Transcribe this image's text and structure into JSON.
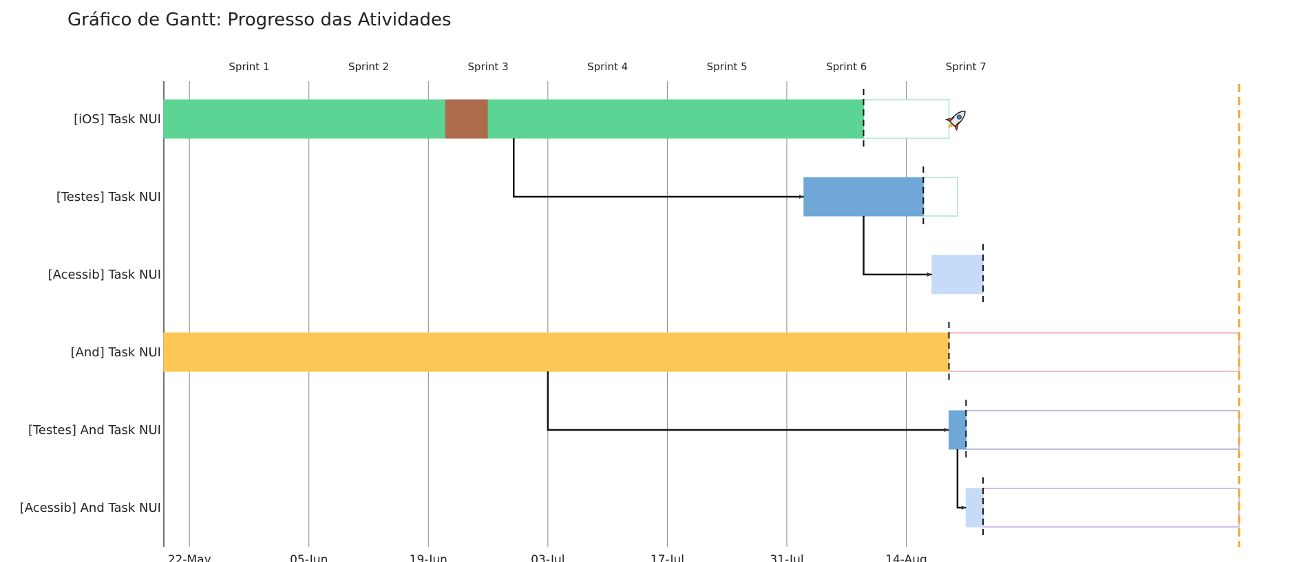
{
  "chart_data": {
    "type": "gantt",
    "title": "Gráfico de Gantt: Progresso das Atividades",
    "x_axis": {
      "ticks": [
        {
          "date": "2023-05-22",
          "label": "22-May"
        },
        {
          "date": "2023-06-05",
          "label": "05-Jun"
        },
        {
          "date": "2023-06-19",
          "label": "19-Jun"
        },
        {
          "date": "2023-07-03",
          "label": "03-Jul"
        },
        {
          "date": "2023-07-17",
          "label": "17-Jul"
        },
        {
          "date": "2023-07-31",
          "label": "31-Jul"
        },
        {
          "date": "2023-08-14",
          "label": "14-Aug"
        }
      ],
      "range": [
        "2023-05-19",
        "2023-09-22"
      ]
    },
    "sprints": [
      {
        "name": "Sprint 1",
        "start": "2023-05-22",
        "end": "2023-06-05"
      },
      {
        "name": "Sprint 2",
        "start": "2023-06-05",
        "end": "2023-06-19"
      },
      {
        "name": "Sprint 3",
        "start": "2023-06-19",
        "end": "2023-07-03"
      },
      {
        "name": "Sprint 4",
        "start": "2023-07-03",
        "end": "2023-07-17"
      },
      {
        "name": "Sprint 5",
        "start": "2023-07-17",
        "end": "2023-07-31"
      },
      {
        "name": "Sprint 6",
        "start": "2023-07-31",
        "end": "2023-08-14"
      },
      {
        "name": "Sprint 7",
        "start": "2023-08-14",
        "end": "2023-08-28"
      }
    ],
    "tasks": [
      {
        "name": "[iOS] Task NUI",
        "segments": [
          {
            "start": "2023-05-19",
            "end": "2023-06-21",
            "color": "#5cd594"
          },
          {
            "start": "2023-06-21",
            "end": "2023-06-26",
            "color": "#ad6b4e"
          },
          {
            "start": "2023-06-26",
            "end": "2023-08-09",
            "color": "#5cd594"
          }
        ],
        "planned": {
          "start": "2023-08-09",
          "end": "2023-08-19",
          "border": "#a8e6c8"
        },
        "marker_date": "2023-08-09",
        "milestone_icon": "rocket-icon"
      },
      {
        "name": "[Testes] Task NUI",
        "segments": [
          {
            "start": "2023-08-02",
            "end": "2023-08-16",
            "color": "#6fa8d6"
          }
        ],
        "planned": {
          "start": "2023-08-16",
          "end": "2023-08-20",
          "border": "#a8e6c8"
        },
        "marker_date": "2023-08-16"
      },
      {
        "name": "[Acessib] Task NUI",
        "segments": [
          {
            "start": "2023-08-17",
            "end": "2023-08-23",
            "color": "#c6dbf7"
          }
        ],
        "planned": null,
        "marker_date": "2023-08-23"
      },
      {
        "name": "[And] Task NUI",
        "segments": [
          {
            "start": "2023-05-19",
            "end": "2023-08-19",
            "color": "#fdc755"
          }
        ],
        "planned": {
          "start": "2023-08-19",
          "end": "2023-09-22",
          "border": "#f1a7a7"
        },
        "marker_date": "2023-08-19"
      },
      {
        "name": "[Testes] And Task NUI",
        "segments": [
          {
            "start": "2023-08-19",
            "end": "2023-08-21",
            "color": "#6fa8d6"
          }
        ],
        "planned": {
          "start": "2023-08-21",
          "end": "2023-09-22",
          "border": "#a9a9c8"
        },
        "marker_date": "2023-08-21"
      },
      {
        "name": "[Acessib] And Task NUI",
        "segments": [
          {
            "start": "2023-08-21",
            "end": "2023-08-23",
            "color": "#c6dbf7"
          }
        ],
        "planned": {
          "start": "2023-08-23",
          "end": "2023-09-22",
          "border": "#c9a7e0"
        },
        "marker_date": "2023-08-23"
      }
    ],
    "dependencies": [
      {
        "from_task": 0,
        "from_date": "2023-06-29",
        "to_task": 1,
        "to_date": "2023-08-02"
      },
      {
        "from_task": 1,
        "from_date": "2023-08-09",
        "to_task": 2,
        "to_date": "2023-08-17"
      },
      {
        "from_task": 3,
        "from_date": "2023-07-03",
        "to_task": 4,
        "to_date": "2023-08-19"
      },
      {
        "from_task": 4,
        "from_date": "2023-08-20",
        "to_task": 5,
        "to_date": "2023-08-21"
      }
    ],
    "deadline": {
      "date": "2023-09-22",
      "color": "#f5a623",
      "style": "dashed"
    },
    "colors": {
      "gridline": "#888888",
      "axis": "#444444",
      "marker": "#111111",
      "dependency": "#111111"
    }
  }
}
